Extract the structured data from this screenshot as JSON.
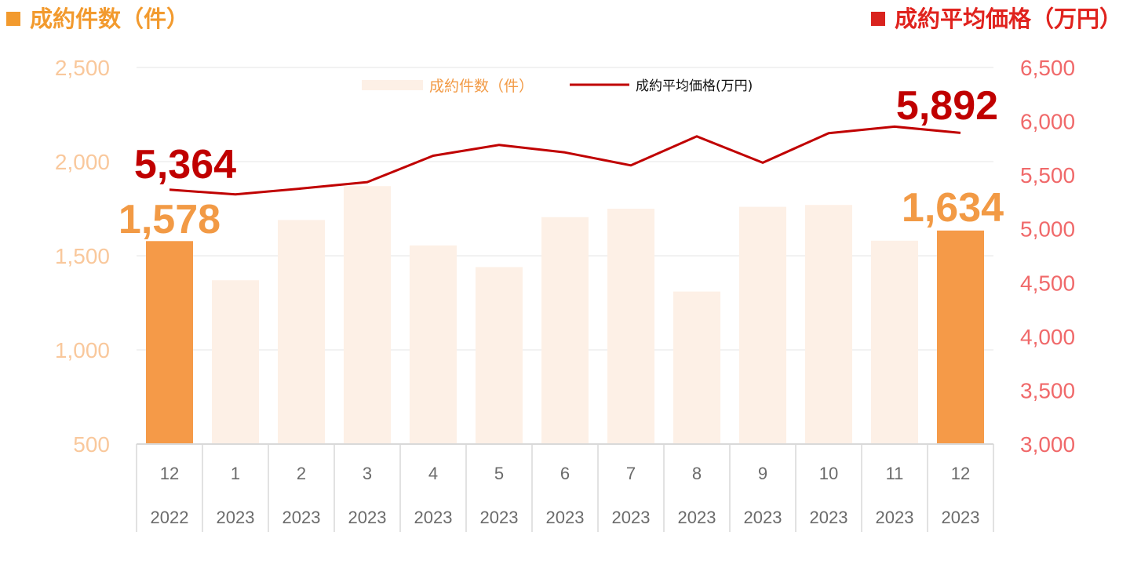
{
  "header": {
    "left_title": "成約件数（件）",
    "right_title": "成約平均価格（万円）"
  },
  "colors": {
    "bar_highlight": "#f59a48",
    "bar_muted": "#fdf0e6",
    "line": "#c00000",
    "left_axis": "#f9c89c",
    "right_axis": "#f0696a"
  },
  "chart_data": {
    "type": "bar",
    "legend": [
      "成約件数（件）",
      "成約平均価格(万円)"
    ],
    "legend_position": "top-center",
    "grid": true,
    "categories": [
      "12",
      "1",
      "2",
      "3",
      "4",
      "5",
      "6",
      "7",
      "8",
      "9",
      "10",
      "11",
      "12"
    ],
    "category_years": [
      "2022",
      "2023",
      "2023",
      "2023",
      "2023",
      "2023",
      "2023",
      "2023",
      "2023",
      "2023",
      "2023",
      "2023",
      "2023"
    ],
    "y_left": {
      "ylim": [
        500,
        2500
      ],
      "ticks": [
        "500",
        "1,000",
        "1,500",
        "2,000",
        "2,500"
      ]
    },
    "y_right": {
      "ylim": [
        3000,
        6500
      ],
      "ticks": [
        "3,000",
        "3,500",
        "4,000",
        "4,500",
        "5,000",
        "5,500",
        "6,000",
        "6,500"
      ]
    },
    "series": [
      {
        "name": "成約件数（件）",
        "type": "bar",
        "axis": "left",
        "values": [
          1578,
          1370,
          1690,
          1870,
          1555,
          1440,
          1705,
          1750,
          1310,
          1760,
          1770,
          1580,
          1634
        ],
        "highlight": [
          true,
          false,
          false,
          false,
          false,
          false,
          false,
          false,
          false,
          false,
          false,
          false,
          true
        ]
      },
      {
        "name": "成約平均価格(万円)",
        "type": "line",
        "axis": "right",
        "values": [
          5364,
          5320,
          5375,
          5435,
          5680,
          5780,
          5710,
          5590,
          5860,
          5615,
          5890,
          5950,
          5892
        ]
      }
    ],
    "annotations": [
      {
        "text": "1,578",
        "series": "成約件数（件）",
        "index": 0
      },
      {
        "text": "1,634",
        "series": "成約件数（件）",
        "index": 12
      },
      {
        "text": "5,364",
        "series": "成約平均価格(万円)",
        "index": 0
      },
      {
        "text": "5,892",
        "series": "成約平均価格(万円)",
        "index": 12
      }
    ]
  }
}
